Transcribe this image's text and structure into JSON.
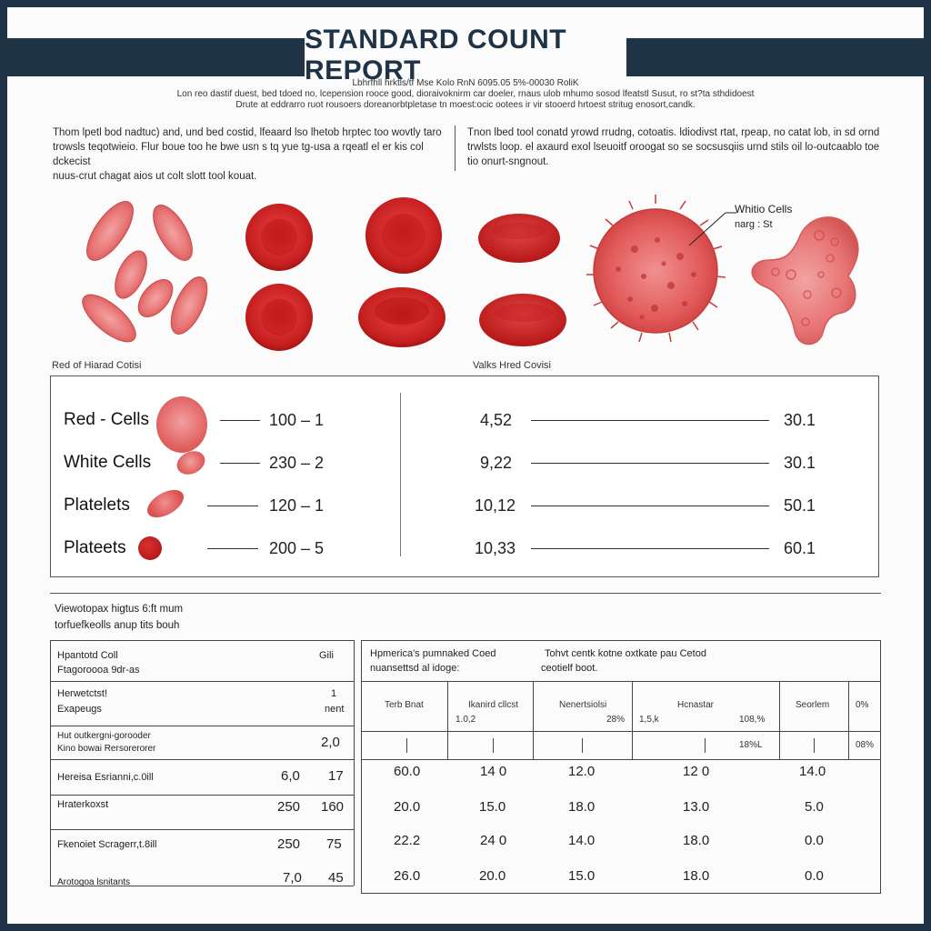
{
  "report": {
    "title": "STANDARD COUNT REPORT",
    "subtitle_lines": [
      "Lbhrfhll hrktls/tf Mse Kolo RnN 6095.05 5%-00030 RoliK",
      "Lon reo dastif duest, bed tdoed no, lcepension rooce good, dioraivoknirm car doeler, rnaus ulob mhumo sosod lfeatstl Susut, ro st?ta sthdidoest",
      "Drute at eddrarro ruot rousoers doreanorbtpletase tn moest:ocic ootees ir vir stooerd hrtoest stritug enosort,candk."
    ]
  },
  "intro": {
    "left": [
      "Thom lpetl bod nadtuc) and, und bed costid, lfeaard lso lhetob hrptec too wovtly taro",
      "trowsls teqotwieio. Flur boue too he bwe usn s tq yue tg-usa a rqeatl el er kis col dckecist",
      "nuus-crut chagat aios ut colt slott tool kouat."
    ],
    "right": [
      "Tnon lbed tool conatd yrowd rrudng, cotoatis. ldiodivst rtat, rpeap, no catat lob, in sd ornd",
      "trwlsts loop. el axaurd exol lseuoitf oroogat so se socsusqiis urnd stils oil lo-outcaablo toe",
      "tio onurt-sngnout."
    ]
  },
  "illustration": {
    "callout_line1": "Whitio Cells",
    "callout_line2": "narg : St"
  },
  "counts": {
    "left_label": "Red of Hiarad Cotisi",
    "right_label": "Valks Hred Covisi",
    "rows": [
      {
        "name": "Red - Cells",
        "range": "100 – 1",
        "value": "4,52",
        "ref": "30.1"
      },
      {
        "name": "White Cells",
        "range": "230 – 2",
        "value": "9,22",
        "ref": "30.1"
      },
      {
        "name": "Platelets",
        "range": "120 – 1",
        "value": "10,12",
        "ref": "50.1"
      },
      {
        "name": "Plateets",
        "range": "200 – 5",
        "value": "10,33",
        "ref": "60.1"
      }
    ]
  },
  "table": {
    "note_line1": "Viewotopax higtus 6:ft mum",
    "note_line2": "torfuefkeolls anup tits bouh",
    "left_header": {
      "label1": "Hpantotd Coll",
      "label2": "Ftagoroooa 9dr-as",
      "unit": "Gili"
    },
    "left_rows": [
      {
        "label1": "Herwetctst!",
        "label2": "Exapeugs",
        "a": "",
        "b": "1",
        "b2": "nent"
      },
      {
        "label1": "Hut outkergni-gorooder",
        "label2": "Kino bowai Rersorerorer",
        "a": "",
        "b": "2,0",
        "b2": ""
      },
      {
        "label1": "Hereisa Esrianni,c.0ill",
        "label2": "",
        "a": "6,0",
        "b": "17",
        "b2": ""
      },
      {
        "label1": "Hraterkoxst",
        "label2": "",
        "a": "250",
        "b": "160",
        "b2": ""
      },
      {
        "label1": "Fkenoiet Scragerr,t.8ill",
        "label2": "",
        "a": "250",
        "b": "75",
        "b2": ""
      },
      {
        "label1": "Arotogoa lsnitants",
        "label2": "",
        "a": "7,0",
        "b": "45",
        "b2": ""
      }
    ],
    "right_header": {
      "h1_line1": "Hpmerica's pumnaked Coed",
      "h1_line2": "nuansettsd al idoge:",
      "h2_line1": "Tohvt centk kotne oxtkate pau Cetod",
      "h2_line2": "ceotielf boot."
    },
    "col_headers": [
      {
        "label": "Terb Bnat",
        "sub": ""
      },
      {
        "label": "Ikanird cllcst",
        "sub": "1.0,2"
      },
      {
        "label": "Nenertsiolsi",
        "sub": "28%"
      },
      {
        "label": "Hcnastar",
        "sub": "1,5,k"
      },
      {
        "label": "",
        "sub": "108,%"
      },
      {
        "label": "Seorlem",
        "sub": ""
      },
      {
        "label": "0%",
        "sub": ""
      }
    ],
    "tick_row": {
      "c5": "18%L",
      "c7": "08%"
    },
    "data_rows": [
      [
        "60.0",
        "14 0",
        "12.0",
        "12 0",
        "14.0"
      ],
      [
        "20.0",
        "15.0",
        "18.0",
        "13.0",
        "5.0"
      ],
      [
        "22.2",
        "24 0",
        "14.0",
        "18.0",
        "0.0"
      ],
      [
        "26.0",
        "20.0",
        "15.0",
        "18.0",
        "0.0"
      ]
    ]
  },
  "colors": {
    "navy": "#1f3347",
    "cell_red": "#d42a2a",
    "cell_pink": "#e46a6a",
    "paper": "#fbfbfb"
  }
}
